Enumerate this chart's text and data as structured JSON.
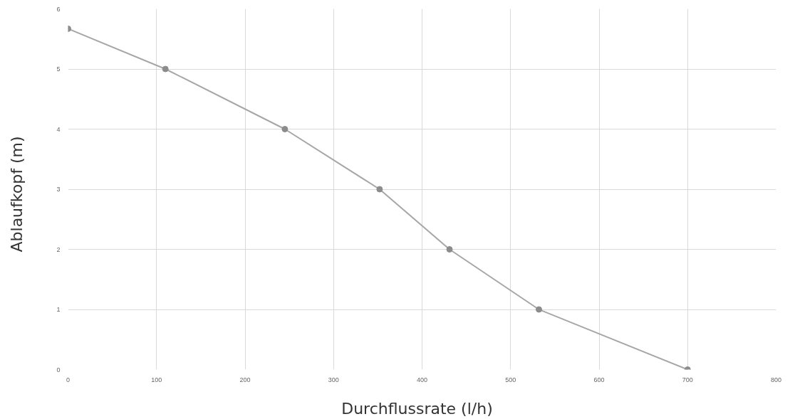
{
  "chart_data": {
    "type": "line",
    "xlabel": "Durchflussrate   (l/h)",
    "ylabel": "Ablaufkopf   (m)",
    "x": [
      0,
      110,
      245,
      352,
      431,
      532,
      700
    ],
    "series": [
      {
        "color": "#8c8c8c",
        "values": [
          5.67,
          5,
          4,
          3,
          2,
          1,
          0
        ]
      }
    ],
    "xlim": [
      0,
      800
    ],
    "xticks": [
      0,
      100,
      200,
      300,
      400,
      500,
      600,
      700,
      800
    ],
    "ylim": [
      0,
      6
    ],
    "yticks": [
      0,
      1,
      2,
      3,
      4,
      5,
      6
    ],
    "grid": true,
    "marker": "circle",
    "line_style": "solid"
  }
}
